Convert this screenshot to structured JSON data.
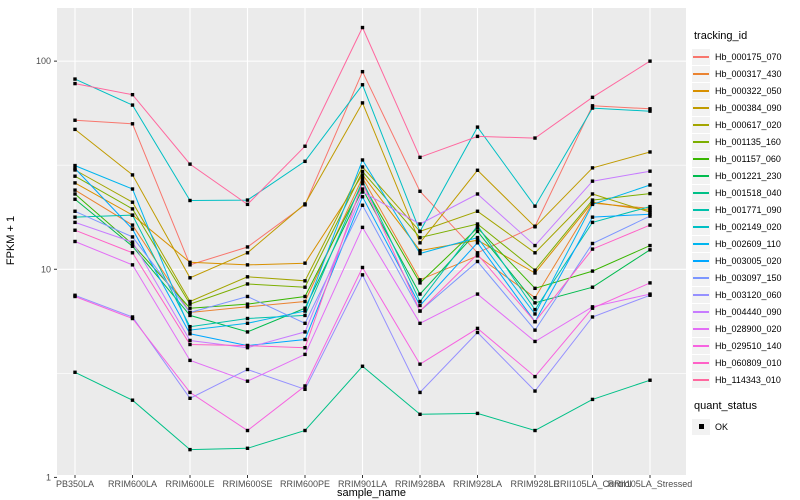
{
  "figure": {
    "background": "#FFFFFF",
    "panel_background": "#EBEBEB",
    "grid_color": "#FFFFFF",
    "tick_color": "#333333",
    "tick_label_color": "#4D4D4D",
    "axis_title_color": "#000000",
    "point_color": "#000000",
    "legend_key_fill": "#F2F2F2"
  },
  "chart_data": {
    "type": "line",
    "title": "",
    "xlabel": "sample_name",
    "ylabel": "FPKM + 1",
    "x_categories": [
      "PB350LA",
      "RRIM600LA",
      "RRIM600LE",
      "RRIM600SE",
      "RRIM600PE",
      "RRIM901LA",
      "RRIM928BA",
      "RRIM928LA",
      "RRIM928LE",
      "RRII105LA_Control",
      "RRII105LA_Stressed"
    ],
    "y_scale": "log10",
    "y_ticks": [
      1,
      10,
      100
    ],
    "y_minor_breaks": [
      3.162,
      31.62
    ],
    "ylim": [
      1.05,
      180
    ],
    "grid": true,
    "legend_position": "right",
    "legend_title": "tracking_id",
    "legend2_title": "quant_status",
    "legend2_items": [
      "OK"
    ],
    "series": [
      {
        "name": "Hb_000175_070",
        "color": "#F8766D",
        "values": [
          52,
          50,
          10.5,
          12.8,
          20.4,
          89,
          23.7,
          12,
          16.1,
          61,
          59
        ]
      },
      {
        "name": "Hb_000317_430",
        "color": "#EA8331",
        "values": [
          24,
          16.3,
          6.2,
          6.6,
          7.0,
          27.5,
          8.9,
          11.6,
          7.3,
          20.8,
          19.6
        ]
      },
      {
        "name": "Hb_000322_050",
        "color": "#D89000",
        "values": [
          26,
          18.2,
          10.8,
          10.5,
          10.7,
          28.4,
          12.3,
          13.8,
          9.6,
          21.0,
          19.2
        ]
      },
      {
        "name": "Hb_000384_090",
        "color": "#C09B00",
        "values": [
          47,
          28.4,
          9.1,
          12.0,
          20.6,
          63,
          13.4,
          29.9,
          16.0,
          30.7,
          36.6
        ]
      },
      {
        "name": "Hb_000617_020",
        "color": "#A3A500",
        "values": [
          30,
          21,
          7.0,
          9.2,
          8.8,
          31,
          15.2,
          19.0,
          12.0,
          23.0,
          18.8
        ]
      },
      {
        "name": "Hb_001135_160",
        "color": "#7CAE00",
        "values": [
          28,
          19.5,
          6.8,
          8.5,
          8.2,
          29.5,
          14.2,
          16.5,
          9.9,
          21.5,
          23.1
        ]
      },
      {
        "name": "Hb_001157_060",
        "color": "#39B600",
        "values": [
          23,
          13.2,
          6.5,
          6.8,
          7.4,
          25.8,
          8.6,
          15.8,
          8.1,
          9.8,
          13.0
        ]
      },
      {
        "name": "Hb_001221_230",
        "color": "#00BB4E",
        "values": [
          21.7,
          12.9,
          6.0,
          5.0,
          6.5,
          24.3,
          7.6,
          15.2,
          6.9,
          8.2,
          12.4
        ]
      },
      {
        "name": "Hb_001518_040",
        "color": "#00C087",
        "values": [
          3.2,
          2.35,
          1.36,
          1.38,
          1.68,
          3.42,
          2.01,
          2.03,
          1.68,
          2.37,
          2.93
        ]
      },
      {
        "name": "Hb_001771_090",
        "color": "#00C1AB",
        "values": [
          17.8,
          18.2,
          5.3,
          5.8,
          6.0,
          26.6,
          7.0,
          16.2,
          6.4,
          16.8,
          20.0
        ]
      },
      {
        "name": "Hb_002149_020",
        "color": "#00BFC4",
        "values": [
          82,
          61.5,
          21.4,
          21.5,
          33,
          77,
          15.2,
          48.2,
          20.1,
          59.5,
          57.5
        ]
      },
      {
        "name": "Hb_002609_110",
        "color": "#00B5EE",
        "values": [
          31.5,
          24.3,
          5.1,
          5.5,
          6.3,
          33.5,
          11.9,
          14.2,
          6.1,
          20.5,
          25.4
        ]
      },
      {
        "name": "Hb_003005_020",
        "color": "#00A7FF",
        "values": [
          30.5,
          15.6,
          4.9,
          4.3,
          4.6,
          22.3,
          6.7,
          13.4,
          5.6,
          17.8,
          18.4
        ]
      },
      {
        "name": "Hb_003097_150",
        "color": "#7C96FF",
        "values": [
          19,
          14.3,
          6.2,
          7.4,
          5.5,
          20.3,
          6.3,
          10.9,
          5.1,
          13.3,
          18.0
        ]
      },
      {
        "name": "Hb_003120_060",
        "color": "#9590FF",
        "values": [
          7.5,
          5.9,
          2.4,
          3.3,
          2.65,
          9.4,
          2.56,
          4.97,
          2.6,
          5.9,
          7.5
        ]
      },
      {
        "name": "Hb_004440_090",
        "color": "#C77CFF",
        "values": [
          16.8,
          13.5,
          4.55,
          4.2,
          5.0,
          23.5,
          16.5,
          23.0,
          13.0,
          26.5,
          29.6
        ]
      },
      {
        "name": "Hb_028900_020",
        "color": "#E36EF6",
        "values": [
          13.6,
          10.5,
          3.65,
          2.9,
          3.9,
          15.9,
          5.5,
          7.6,
          4.5,
          6.6,
          7.6
        ]
      },
      {
        "name": "Hb_029510_140",
        "color": "#F763E0",
        "values": [
          7.4,
          5.8,
          2.56,
          1.68,
          2.75,
          10.2,
          3.5,
          5.2,
          3.05,
          6.5,
          8.6
        ]
      },
      {
        "name": "Hb_060809_010",
        "color": "#FF61C7",
        "values": [
          15.4,
          12.0,
          4.35,
          4.3,
          4.2,
          26.0,
          6.3,
          11.8,
          5.6,
          12.5,
          16.3
        ]
      },
      {
        "name": "Hb_114343_010",
        "color": "#FF689F",
        "values": [
          78,
          69,
          32,
          20.5,
          39,
          145,
          34.5,
          43.5,
          42.7,
          67,
          100
        ]
      }
    ]
  }
}
